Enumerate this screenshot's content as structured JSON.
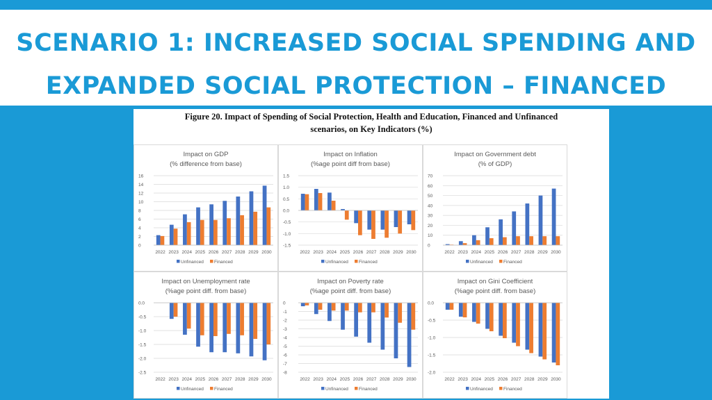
{
  "slide": {
    "title_line1": "SCENARIO 1: INCREASED SOCIAL SPENDING AND",
    "title_line2": "EXPANDED SOCIAL PROTECTION – FINANCED",
    "accent_color": "#1a9ad6"
  },
  "figure": {
    "caption_line1": "Figure 20. Impact of Spending of Social Protection, Health and Education, Financed and Unfinanced",
    "caption_line2": "scenarios, on Key Indicators (%)"
  },
  "series_colors": {
    "Unfinanced": "#4472c4",
    "Financed": "#ed7d31"
  },
  "chart_data": [
    {
      "type": "bar",
      "title": "Impact on GDP",
      "subtitle": "(% difference from base)",
      "categories": [
        "2022",
        "2023",
        "2024",
        "2025",
        "2026",
        "2027",
        "2028",
        "2029",
        "2030"
      ],
      "series": [
        {
          "name": "Unfinanced",
          "values": [
            2.3,
            4.7,
            7.1,
            8.7,
            9.4,
            10.2,
            11.2,
            12.4,
            13.7
          ]
        },
        {
          "name": "Financed",
          "values": [
            2.1,
            3.8,
            5.3,
            5.8,
            5.8,
            6.2,
            6.9,
            7.7,
            8.7
          ]
        }
      ],
      "yticks": [
        "0",
        "2",
        "4",
        "6",
        "8",
        "10",
        "12",
        "14",
        "16"
      ],
      "ylim": [
        0,
        16
      ],
      "legend": [
        "Unfinanced",
        "Financed"
      ]
    },
    {
      "type": "bar",
      "title": "Impact on Inflation",
      "subtitle": "(%age point diff from base)",
      "categories": [
        "2022",
        "2023",
        "2024",
        "2025",
        "2026",
        "2027",
        "2028",
        "2029",
        "2030"
      ],
      "series": [
        {
          "name": "Unfinanced",
          "values": [
            0.72,
            0.93,
            0.77,
            0.06,
            -0.55,
            -0.83,
            -0.83,
            -0.72,
            -0.6
          ]
        },
        {
          "name": "Financed",
          "values": [
            0.7,
            0.75,
            0.42,
            -0.4,
            -1.07,
            -1.23,
            -1.18,
            -1.0,
            -0.85
          ]
        }
      ],
      "yticks": [
        "-1.5",
        "-1.0",
        "-0.5",
        "0.0",
        "0.5",
        "1.0",
        "1.5"
      ],
      "ylim": [
        -1.5,
        1.5
      ],
      "legend": [
        "Unfinanced",
        "Financed"
      ]
    },
    {
      "type": "bar",
      "title": "Impact on Government debt",
      "subtitle": "(% of GDP)",
      "categories": [
        "2022",
        "2023",
        "2024",
        "2025",
        "2026",
        "2027",
        "2028",
        "2029",
        "2030"
      ],
      "series": [
        {
          "name": "Unfinanced",
          "values": [
            1,
            4,
            10,
            18,
            26,
            34,
            42,
            50,
            57
          ]
        },
        {
          "name": "Financed",
          "values": [
            0.5,
            2,
            5,
            7,
            8,
            9,
            9,
            9,
            9
          ]
        }
      ],
      "yticks": [
        "0",
        "10",
        "20",
        "30",
        "40",
        "50",
        "60",
        "70"
      ],
      "ylim": [
        0,
        70
      ],
      "legend": [
        "Unfinanced",
        "Financed"
      ]
    },
    {
      "type": "bar",
      "title": "Impact on Unemployment rate",
      "subtitle": "(%age point diff. from base)",
      "categories": [
        "2022",
        "2023",
        "2024",
        "2025",
        "2026",
        "2027",
        "2028",
        "2029",
        "2030"
      ],
      "series": [
        {
          "name": "Unfinanced",
          "values": [
            0,
            -0.58,
            -1.15,
            -1.58,
            -1.78,
            -1.78,
            -1.82,
            -1.93,
            -2.07
          ]
        },
        {
          "name": "Financed",
          "values": [
            0,
            -0.5,
            -0.93,
            -1.17,
            -1.2,
            -1.12,
            -1.17,
            -1.3,
            -1.5
          ]
        }
      ],
      "yticks": [
        "-2.5",
        "-2.0",
        "-1.5",
        "-1.0",
        "-0.5",
        "0.0"
      ],
      "ylim": [
        -2.5,
        0
      ],
      "legend": [
        "Unfinanced",
        "Financed"
      ]
    },
    {
      "type": "bar",
      "title": "Impact on Poverty rate",
      "subtitle": "(%age point diff. from base)",
      "categories": [
        "2022",
        "2023",
        "2024",
        "2025",
        "2026",
        "2027",
        "2028",
        "2029",
        "2030"
      ],
      "series": [
        {
          "name": "Unfinanced",
          "values": [
            -0.4,
            -1.3,
            -2.1,
            -3.1,
            -3.9,
            -4.6,
            -5.4,
            -6.4,
            -7.4
          ]
        },
        {
          "name": "Financed",
          "values": [
            -0.3,
            -0.8,
            -0.9,
            -0.9,
            -1.1,
            -1.1,
            -1.7,
            -2.3,
            -3.1
          ]
        }
      ],
      "yticks": [
        "-8",
        "-7",
        "-6",
        "-5",
        "-4",
        "-3",
        "-2",
        "-1",
        "0"
      ],
      "ylim": [
        -8,
        0
      ],
      "legend": [
        "Unfinanced",
        "Financed"
      ]
    },
    {
      "type": "bar",
      "title": "Impact on Gini Coefficient",
      "subtitle": "(%age point diff. from base)",
      "categories": [
        "2022",
        "2023",
        "2024",
        "2025",
        "2026",
        "2027",
        "2028",
        "2029",
        "2030"
      ],
      "series": [
        {
          "name": "Unfinanced",
          "values": [
            -0.2,
            -0.4,
            -0.55,
            -0.75,
            -0.95,
            -1.15,
            -1.35,
            -1.55,
            -1.72
          ]
        },
        {
          "name": "Financed",
          "values": [
            -0.2,
            -0.42,
            -0.6,
            -0.82,
            -1.02,
            -1.25,
            -1.45,
            -1.63,
            -1.8
          ]
        }
      ],
      "yticks": [
        "-2.0",
        "-1.5",
        "-1.0",
        "-0.5",
        "0.0"
      ],
      "ylim": [
        -2.0,
        0
      ],
      "legend": [
        "Unfinanced",
        "Financed"
      ]
    }
  ]
}
